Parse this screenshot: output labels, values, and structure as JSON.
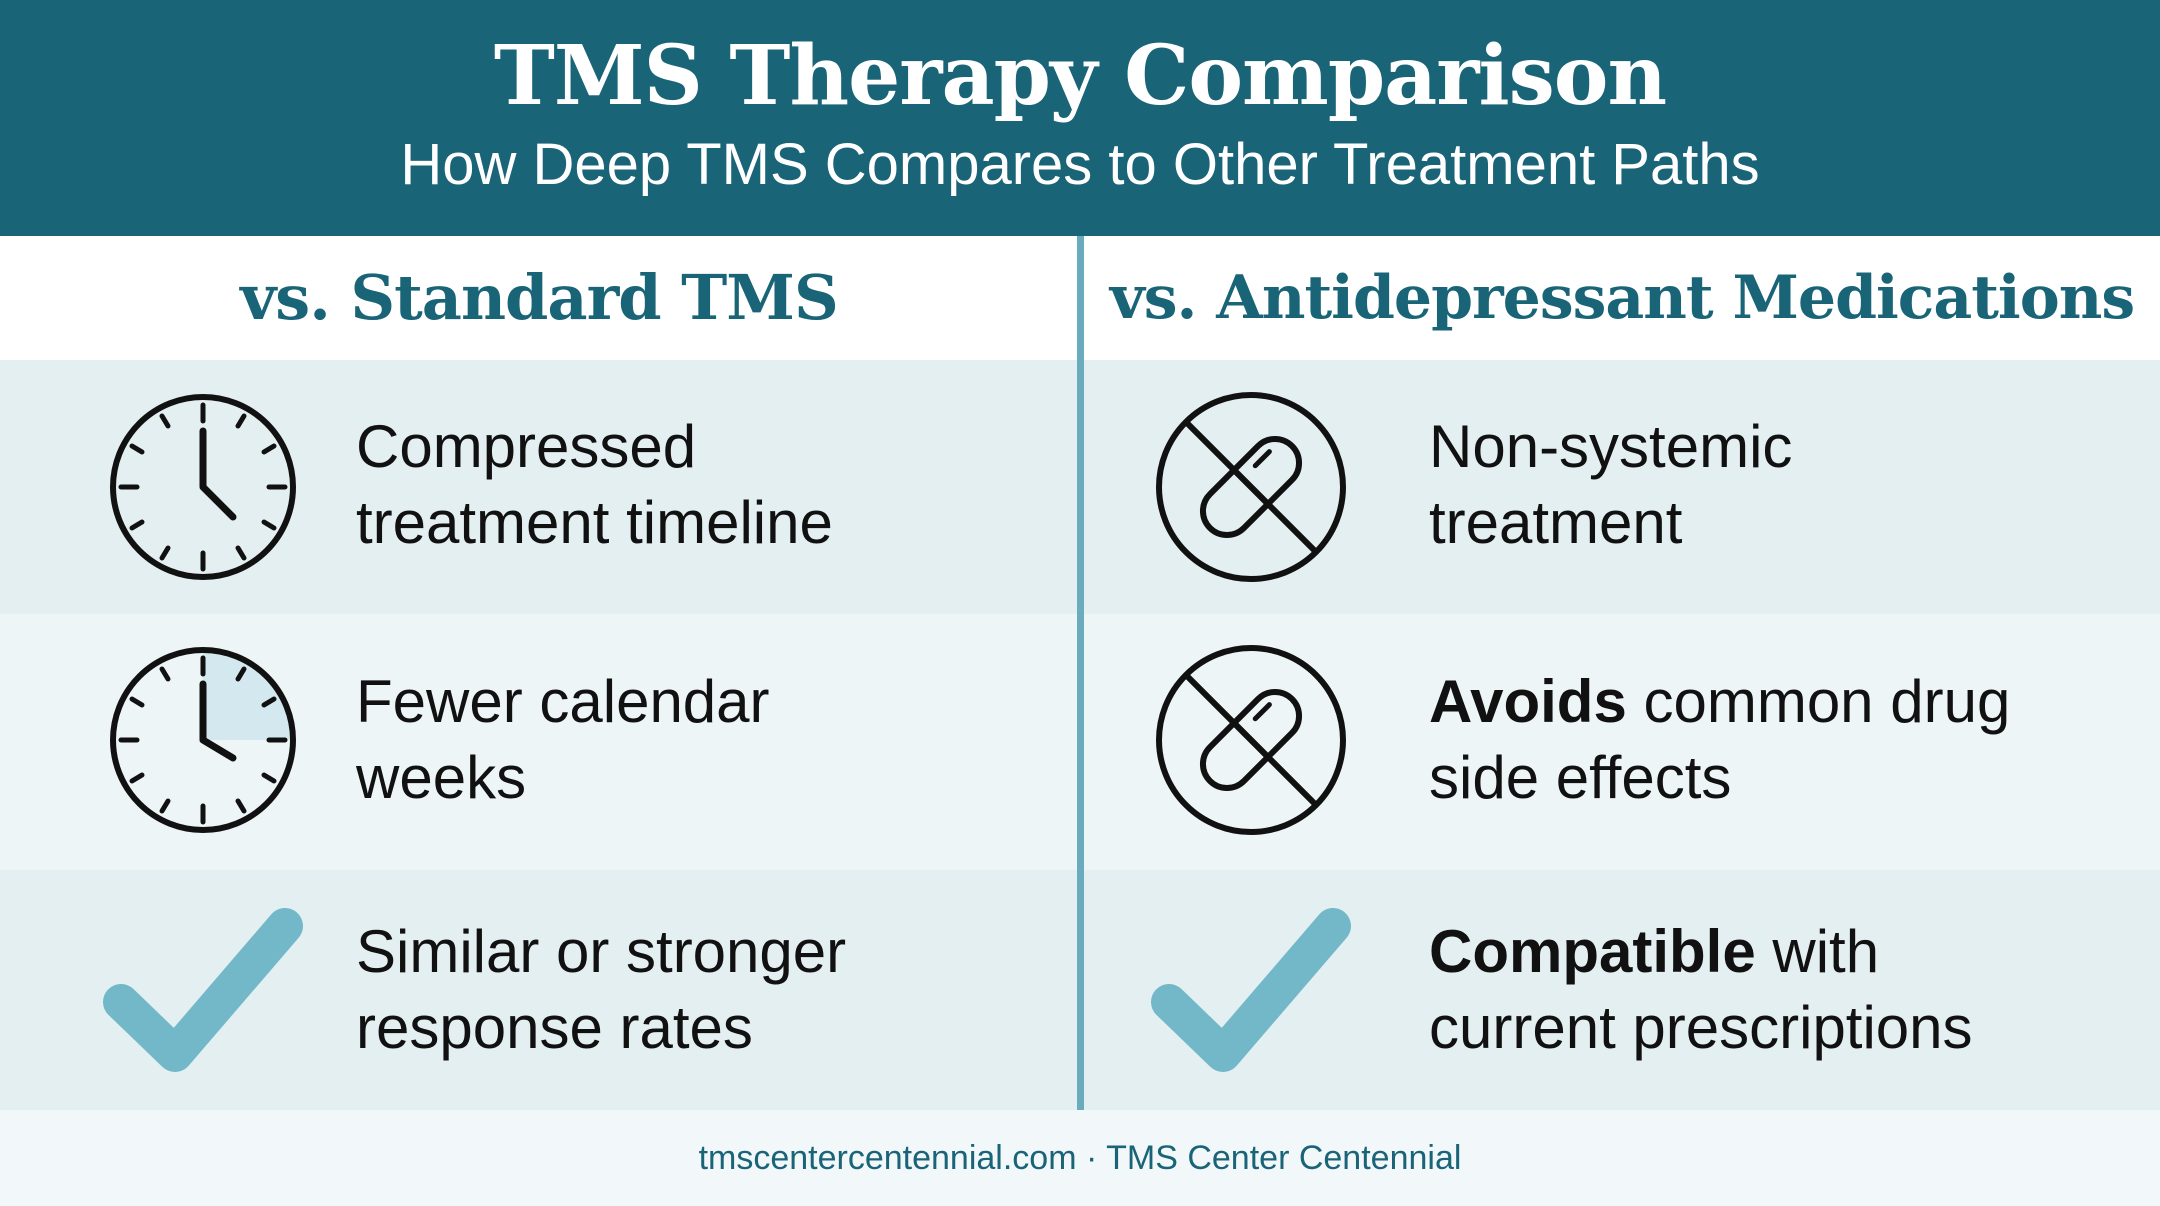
{
  "header": {
    "title": "TMS Therapy Comparison",
    "subtitle": "How Deep TMS Compares to Other Treatment Paths"
  },
  "columns": {
    "left": {
      "heading": "vs. Standard TMS",
      "items": [
        {
          "icon": "clock-icon",
          "line1": "Compressed",
          "line2": "treatment timeline"
        },
        {
          "icon": "clock-shaded-icon",
          "line1": "Fewer calendar",
          "line2": "weeks"
        },
        {
          "icon": "checkmark-icon",
          "line1": "Similar or stronger",
          "line2": "response rates"
        }
      ]
    },
    "right": {
      "heading": "vs. Antidepressant Medications",
      "items": [
        {
          "icon": "no-pill-icon",
          "line1": "Non-systemic",
          "line2": "treatment"
        },
        {
          "icon": "no-pill-icon",
          "strong": "Avoids",
          "rest": " common drug",
          "line2": "side effects"
        },
        {
          "icon": "checkmark-icon",
          "strong": "Compatible",
          "rest": " with",
          "line2": "current prescriptions"
        }
      ]
    }
  },
  "footer": {
    "text": "tmscentercentennial.com · TMS Center Centennial"
  },
  "colors": {
    "header_bg": "#1a6478",
    "heading_text": "#1a6478",
    "divider": "#6aabbd",
    "checkmark": "#72b8c8",
    "row_shade": "#e4eff2",
    "row_light": "#eef5f7"
  }
}
